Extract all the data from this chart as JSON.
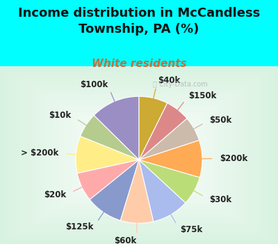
{
  "title": "Income distribution in McCandless\nTownship, PA (%)",
  "subtitle": "White residents",
  "title_color": "#111111",
  "subtitle_color": "#c07040",
  "bg_cyan": "#00ffff",
  "chart_bg": "#ddeedd",
  "watermark": "ⓘ City-Data.com",
  "labels": [
    "$100k",
    "$10k",
    "> $200k",
    "$20k",
    "$125k",
    "$60k",
    "$75k",
    "$30k",
    "$200k",
    "$50k",
    "$150k",
    "$40k"
  ],
  "sizes": [
    12,
    6,
    9,
    7,
    9,
    8,
    9,
    7,
    9,
    6,
    6,
    7
  ],
  "colors": [
    "#9b8ec4",
    "#b5cc8e",
    "#ffee88",
    "#ffaaaa",
    "#8899cc",
    "#ffccaa",
    "#aabbee",
    "#bbdd77",
    "#ffaa55",
    "#ccbbaa",
    "#dd8888",
    "#ccaa33"
  ],
  "startangle": 90,
  "label_fontsize": 8.5,
  "title_fontsize": 13,
  "subtitle_fontsize": 11
}
